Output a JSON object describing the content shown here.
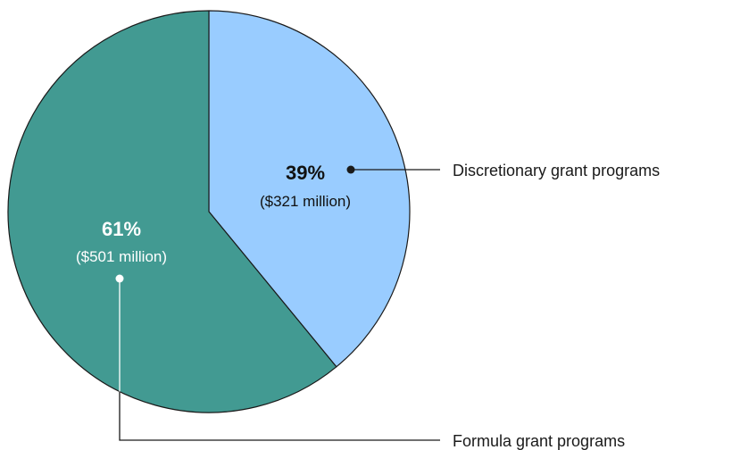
{
  "chart_data": {
    "type": "pie",
    "start": "top",
    "direction": "clockwise",
    "slices": [
      {
        "label": "Discretionary grant programs",
        "percent_label": "39%",
        "amount_label": "($321 million)",
        "value": 321,
        "percent": 39,
        "color": "#99ccff",
        "text_color": "#111111"
      },
      {
        "label": "Formula grant programs",
        "percent_label": "61%",
        "amount_label": "($501 million)",
        "value": 501,
        "percent": 61,
        "color": "#429a92",
        "text_color": "#ffffff"
      }
    ],
    "slice_border_color": "#1a1a1a"
  }
}
